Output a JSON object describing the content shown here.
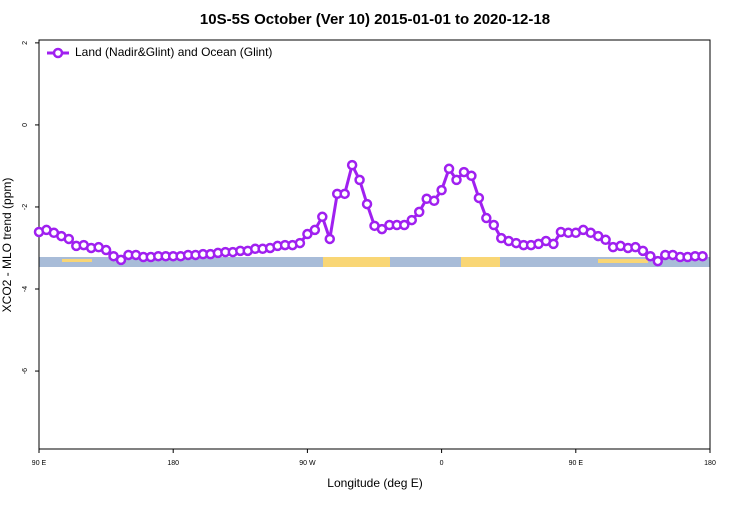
{
  "chart_data": {
    "type": "line",
    "title": "10S-5S October (Ver 10)   2015-01-01 to 2020-12-18",
    "x_label": "Longitude (deg E)",
    "y_label": "XCO2 - MLO trend (ppm)",
    "xlim": [
      90,
      540
    ],
    "ylim": [
      -7.9,
      2.07
    ],
    "xticks": [
      {
        "value": 90,
        "label": "90 E"
      },
      180,
      {
        "value": 270,
        "label": "90 W"
      },
      {
        "value": 360,
        "label": "0"
      },
      {
        "value": 450,
        "label": "90 E"
      },
      {
        "value": 540,
        "label": "180"
      }
    ],
    "yticks": [
      2,
      0,
      -2,
      -4,
      -6
    ],
    "legend_position": "top-left",
    "x": [
      90,
      95,
      100,
      105,
      110,
      115,
      120,
      125,
      130,
      135,
      140,
      145,
      150,
      155,
      160,
      165,
      170,
      175,
      180,
      185,
      190,
      195,
      200,
      205,
      210,
      215,
      220,
      225,
      230,
      235,
      240,
      245,
      250,
      255,
      260,
      265,
      270,
      275,
      280,
      285,
      290,
      295,
      300,
      305,
      310,
      315,
      320,
      325,
      330,
      335,
      340,
      345,
      350,
      355,
      360,
      365,
      370,
      375,
      380,
      385,
      390,
      395,
      400,
      405,
      410,
      415,
      420,
      425,
      430,
      435,
      440,
      445,
      450,
      455,
      460,
      465,
      470,
      475,
      480,
      485,
      490,
      495,
      500,
      505,
      510,
      515,
      520,
      525,
      530,
      535
    ],
    "series": [
      {
        "name": "Land (Nadir&Glint) and Ocean (Glint)",
        "color": "#a020f0",
        "values": [
          -2.61,
          -2.56,
          -2.63,
          -2.71,
          -2.78,
          -2.95,
          -2.93,
          -3.0,
          -2.98,
          -3.05,
          -3.2,
          -3.29,
          -3.17,
          -3.17,
          -3.22,
          -3.22,
          -3.2,
          -3.2,
          -3.2,
          -3.2,
          -3.17,
          -3.17,
          -3.15,
          -3.15,
          -3.12,
          -3.1,
          -3.1,
          -3.07,
          -3.07,
          -3.02,
          -3.02,
          -3.0,
          -2.95,
          -2.93,
          -2.93,
          -2.88,
          -2.66,
          -2.56,
          -2.24,
          -2.78,
          -1.68,
          -1.68,
          -0.98,
          -1.34,
          -1.93,
          -2.46,
          -2.54,
          -2.44,
          -2.44,
          -2.44,
          -2.32,
          -2.12,
          -1.8,
          -1.85,
          -1.59,
          -1.07,
          -1.34,
          -1.15,
          -1.24,
          -1.78,
          -2.27,
          -2.44,
          -2.76,
          -2.83,
          -2.88,
          -2.93,
          -2.93,
          -2.9,
          -2.83,
          -2.9,
          -2.61,
          -2.63,
          -2.63,
          -2.56,
          -2.63,
          -2.71,
          -2.8,
          -2.98,
          -2.95,
          -3.0,
          -2.98,
          -3.07,
          -3.2,
          -3.32,
          -3.17,
          -3.17,
          -3.22,
          -3.22,
          -3.2,
          -3.2
        ]
      }
    ]
  }
}
